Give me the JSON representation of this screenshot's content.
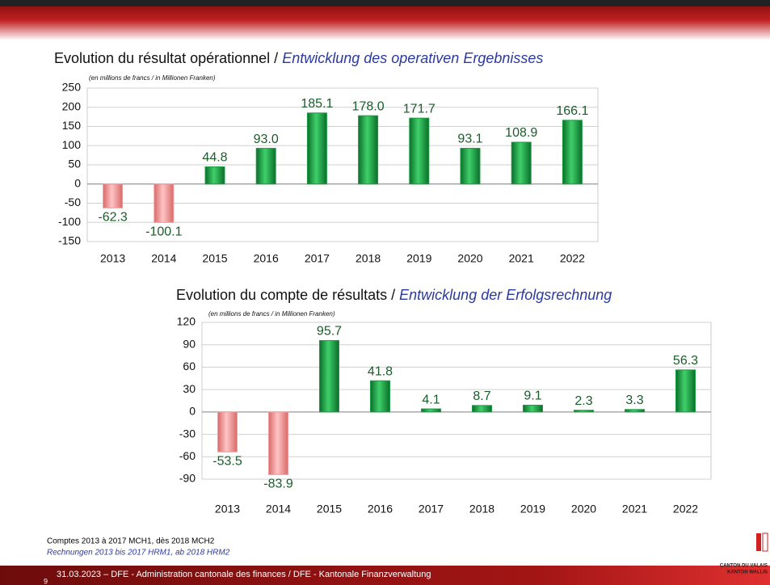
{
  "chart_data": [
    {
      "type": "bar",
      "title_fr": "Evolution du résultat opérationnel / ",
      "title_de": "Entwicklung des operativen Ergebnisses",
      "unit_note": "(en millions de francs / in Millionen Franken)",
      "categories": [
        "2013",
        "2014",
        "2015",
        "2016",
        "2017",
        "2018",
        "2019",
        "2020",
        "2021",
        "2022"
      ],
      "values": [
        -62.3,
        -100.1,
        44.8,
        93.0,
        185.1,
        178.0,
        171.7,
        93.1,
        108.9,
        166.1
      ],
      "value_labels": [
        "-62.3",
        "-100.1",
        "44.8",
        "93.0",
        "185.1",
        "178.0",
        "171.7",
        "93.1",
        "108.9",
        "166.1"
      ],
      "color": "#1c9c44",
      "negative_color": "#f49a9a",
      "ylim": [
        -150,
        250
      ],
      "yticks": [
        -150,
        -100,
        -50,
        0,
        50,
        100,
        150,
        200,
        250
      ],
      "grid": true
    },
    {
      "type": "bar",
      "title_fr": "Evolution du compte de résultats / ",
      "title_de": "Entwicklung der Erfolgsrechnung",
      "unit_note": "(en millions de francs / in Millionen Franken)",
      "categories": [
        "2013",
        "2014",
        "2015",
        "2016",
        "2017",
        "2018",
        "2019",
        "2020",
        "2021",
        "2022"
      ],
      "values": [
        -53.5,
        -83.9,
        95.7,
        41.8,
        4.1,
        8.7,
        9.1,
        2.3,
        3.3,
        56.3
      ],
      "ylim": [
        -90,
        120
      ],
      "yticks": [
        -90,
        -60,
        -30,
        0,
        30,
        60,
        90,
        120
      ],
      "grid": true,
      "color": "#1c9c44",
      "negative_color": "#f49a9a"
    }
  ],
  "notes": {
    "fr": "Comptes 2013 à 2017 MCH1, dès 2018 MCH2",
    "de": "Rechnungen 2013 bis 2017 HRM1, ab 2018 HRM2"
  },
  "footer": {
    "text": "31.03.2023 – DFE - Administration cantonale des finances / DFE - Kantonale Finanzverwaltung",
    "page": "9"
  },
  "logo": {
    "line1": "CANTON DU VALAIS",
    "line2": "KANTON WALLIS"
  }
}
